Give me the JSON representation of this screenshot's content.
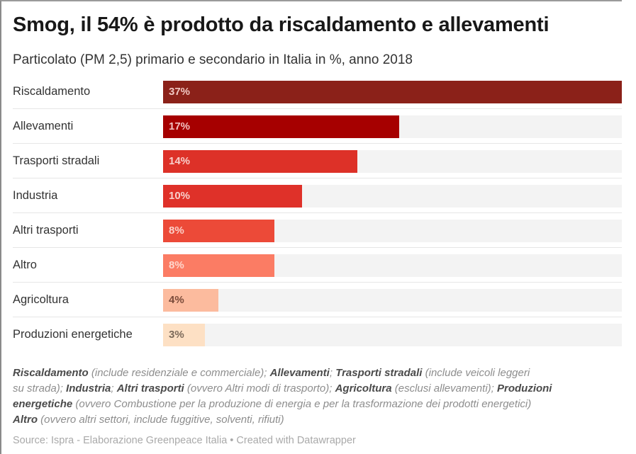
{
  "chart_data": {
    "type": "bar",
    "orientation": "horizontal",
    "title": "Smog, il 54% è prodotto da riscaldamento e allevamenti",
    "subtitle": "Particolato (PM 2,5) primario e secondario in Italia in %, anno 2018",
    "xlabel": "",
    "ylabel": "",
    "xlim": [
      0,
      37
    ],
    "grid": false,
    "legend": "none",
    "categories": [
      "Riscaldamento",
      "Allevamenti",
      "Trasporti stradali",
      "Industria",
      "Altri trasporti",
      "Altro",
      "Agricoltura",
      "Produzioni energetiche"
    ],
    "values": [
      37,
      17,
      14,
      10,
      8,
      8,
      4,
      3
    ],
    "value_labels": [
      "37%",
      "17%",
      "14%",
      "10%",
      "8%",
      "8%",
      "4%",
      "3%"
    ],
    "bar_colors": [
      "#8b2119",
      "#a60000",
      "#dd3128",
      "#df3129",
      "#ec4a38",
      "#fb7c64",
      "#fcbb9e",
      "#fde0c4"
    ],
    "label_colors": [
      "#f0c7c2",
      "#f2c2c2",
      "#f8cfcb",
      "#f8cfcb",
      "#fbd0c8",
      "#fdd6cc",
      "#7a4b3a",
      "#7c6a5a"
    ],
    "track_color": "#f3f3f3"
  },
  "notes": {
    "lines": [
      [
        {
          "b": true,
          "t": "Riscaldamento"
        },
        {
          "b": false,
          "t": " (include residenziale e commerciale); "
        },
        {
          "b": true,
          "t": "Allevamenti"
        },
        {
          "b": false,
          "t": "; "
        },
        {
          "b": true,
          "t": "Trasporti stradali"
        },
        {
          "b": false,
          "t": " (include veicoli leggeri"
        }
      ],
      [
        {
          "b": false,
          "t": "su strada); "
        },
        {
          "b": true,
          "t": "Industria"
        },
        {
          "b": false,
          "t": "; "
        },
        {
          "b": true,
          "t": "Altri trasporti"
        },
        {
          "b": false,
          "t": " (ovvero Altri modi di trasporto); "
        },
        {
          "b": true,
          "t": "Agricoltura"
        },
        {
          "b": false,
          "t": " (esclusi allevamenti); "
        },
        {
          "b": true,
          "t": "Produzioni"
        }
      ],
      [
        {
          "b": true,
          "t": "energetiche"
        },
        {
          "b": false,
          "t": " (ovvero Combustione per la produzione di energia e per la trasformazione dei prodotti energetici)"
        }
      ],
      [
        {
          "b": true,
          "t": "Altro"
        },
        {
          "b": false,
          "t": " (ovvero altri settori, include fuggitive, solventi, rifiuti)"
        }
      ]
    ]
  },
  "source": "Source: Ispra - Elaborazione Greenpeace Italia • Created with Datawrapper"
}
